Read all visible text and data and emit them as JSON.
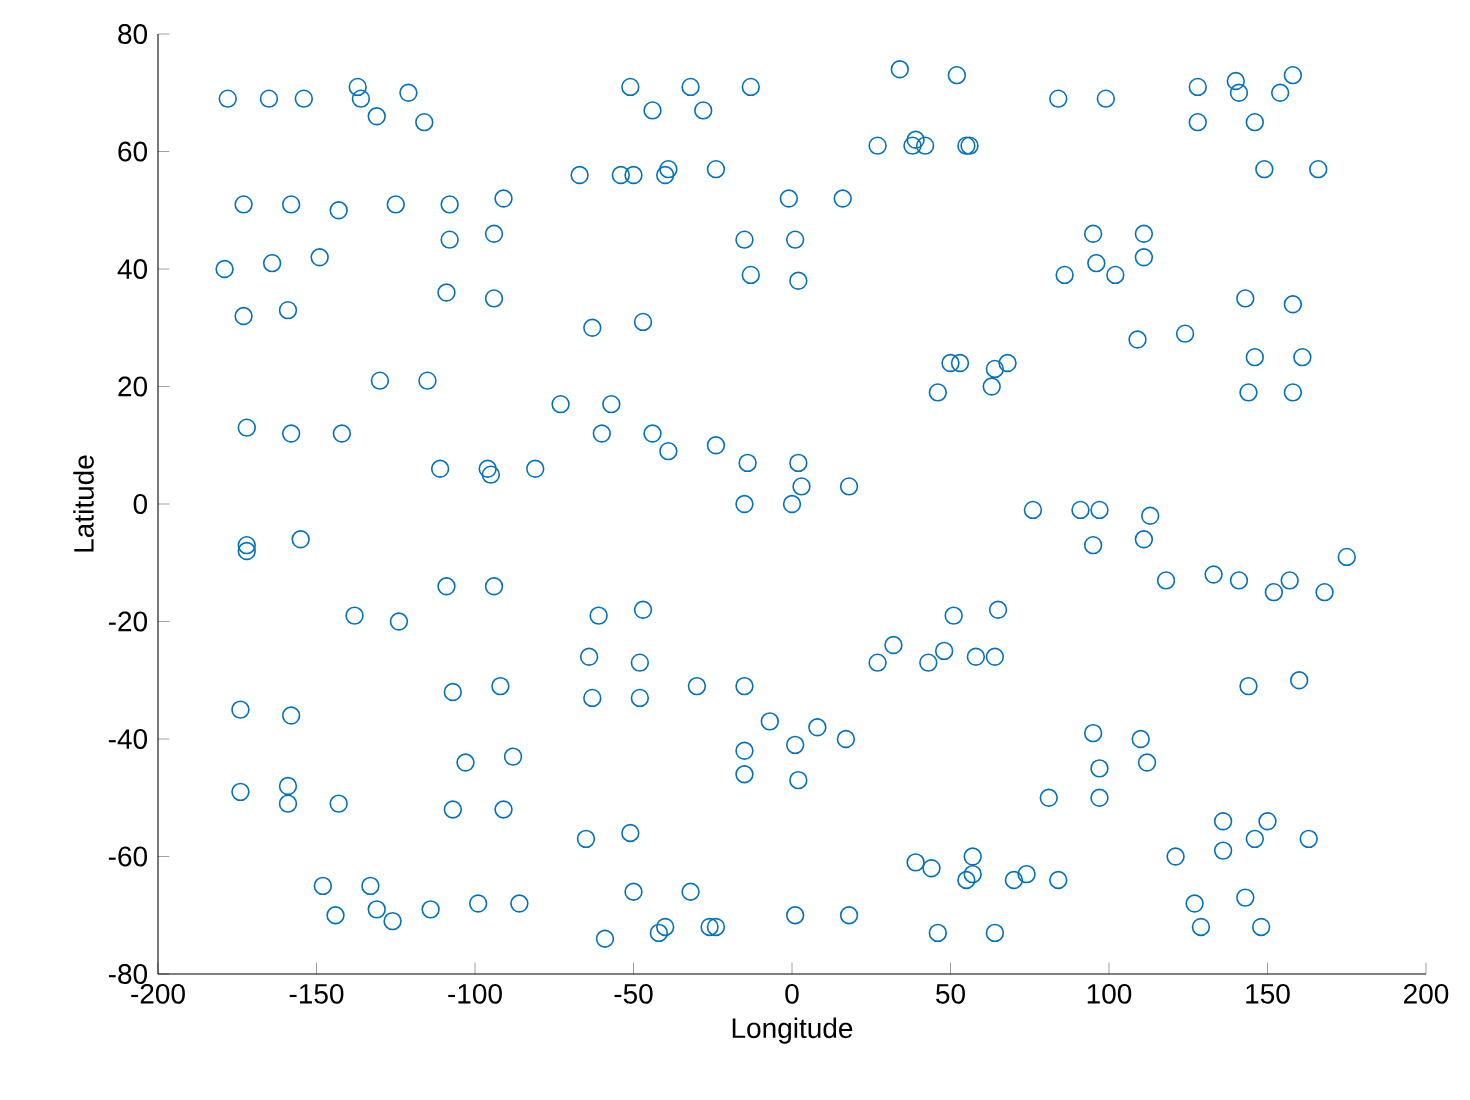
{
  "chart_data": {
    "type": "scatter",
    "xlabel": "Longitude",
    "ylabel": "Latitude",
    "color": "#0072bd",
    "marker": "circle",
    "grid": false,
    "xlim": [
      -200,
      200
    ],
    "ylim": [
      -80,
      80
    ],
    "xticks": [
      -200,
      -150,
      -100,
      -50,
      0,
      50,
      100,
      150,
      200
    ],
    "yticks": [
      -80,
      -60,
      -40,
      -20,
      0,
      20,
      40,
      60,
      80
    ],
    "x": [
      -178,
      -165,
      -154,
      -137,
      -136,
      -131,
      -121,
      -116,
      -51,
      -44,
      -32,
      -28,
      -13,
      -67,
      -54,
      -50,
      -40,
      -39,
      -24,
      -1,
      -15,
      1,
      -13,
      2,
      -173,
      -158,
      -143,
      -125,
      -108,
      -91,
      -108,
      -94,
      -179,
      -164,
      -149,
      -173,
      -159,
      -109,
      -94,
      -63,
      -47,
      -130,
      -115,
      -73,
      -57,
      -172,
      -158,
      -142,
      -60,
      -44,
      -39,
      -24,
      -14,
      2,
      3,
      -15,
      0,
      -111,
      -96,
      -95,
      -81,
      34,
      52,
      27,
      39,
      38,
      42,
      55,
      56,
      84,
      99,
      128,
      140,
      141,
      158,
      154,
      128,
      146,
      149,
      166,
      16,
      95,
      111,
      111,
      96,
      86,
      102,
      143,
      158,
      109,
      124,
      146,
      161,
      144,
      158,
      50,
      53,
      64,
      68,
      46,
      63,
      18,
      -172,
      -172,
      -155,
      -109,
      -94,
      -138,
      -124,
      -61,
      -47,
      -64,
      -48,
      -63,
      -48,
      -30,
      -15,
      -7,
      -15,
      1,
      -15,
      2,
      -174,
      -158,
      -107,
      -92,
      -103,
      -88,
      -174,
      -159,
      -159,
      -143,
      -107,
      -91,
      -65,
      -51,
      -148,
      -133,
      -144,
      -131,
      -126,
      -114,
      -99,
      -86,
      -50,
      -32,
      -59,
      -40,
      -42,
      -26,
      -24,
      1,
      76,
      91,
      97,
      113,
      95,
      111,
      118,
      133,
      141,
      152,
      157,
      168,
      175,
      51,
      65,
      32,
      27,
      43,
      48,
      58,
      64,
      144,
      160,
      8,
      17,
      95,
      110,
      97,
      112,
      81,
      97,
      136,
      150,
      146,
      136,
      163,
      121,
      39,
      44,
      57,
      55,
      57,
      70,
      74,
      84,
      127,
      143,
      129,
      148,
      18,
      46,
      64
    ],
    "values": [
      69,
      69,
      69,
      71,
      69,
      66,
      70,
      65,
      71,
      67,
      71,
      67,
      71,
      56,
      56,
      56,
      56,
      57,
      57,
      52,
      45,
      45,
      39,
      38,
      51,
      51,
      50,
      51,
      51,
      52,
      45,
      46,
      40,
      41,
      42,
      32,
      33,
      36,
      35,
      30,
      31,
      21,
      21,
      17,
      17,
      13,
      12,
      12,
      12,
      12,
      9,
      10,
      7,
      7,
      3,
      0,
      0,
      6,
      6,
      5,
      6,
      74,
      73,
      61,
      62,
      61,
      61,
      61,
      61,
      69,
      69,
      71,
      72,
      70,
      73,
      70,
      65,
      65,
      57,
      57,
      52,
      46,
      46,
      42,
      41,
      39,
      39,
      35,
      34,
      28,
      29,
      25,
      25,
      19,
      19,
      24,
      24,
      23,
      24,
      19,
      20,
      3,
      -7,
      -8,
      -6,
      -14,
      -14,
      -19,
      -20,
      -19,
      -18,
      -26,
      -27,
      -33,
      -33,
      -31,
      -31,
      -37,
      -42,
      -41,
      -46,
      -47,
      -35,
      -36,
      -32,
      -31,
      -44,
      -43,
      -49,
      -48,
      -51,
      -51,
      -52,
      -52,
      -57,
      -56,
      -65,
      -65,
      -70,
      -69,
      -71,
      -69,
      -68,
      -68,
      -66,
      -66,
      -74,
      -72,
      -73,
      -72,
      -72,
      -70,
      -1,
      -1,
      -1,
      -2,
      -7,
      -6,
      -13,
      -12,
      -13,
      -15,
      -13,
      -15,
      -9,
      -19,
      -18,
      -24,
      -27,
      -27,
      -25,
      -26,
      -26,
      -31,
      -30,
      -38,
      -40,
      -39,
      -40,
      -45,
      -44,
      -50,
      -50,
      -54,
      -54,
      -57,
      -59,
      -57,
      -60,
      -61,
      -62,
      -60,
      -64,
      -63,
      -64,
      -63,
      -64,
      -68,
      -67,
      -72,
      -72,
      -70,
      -73,
      -73
    ]
  }
}
